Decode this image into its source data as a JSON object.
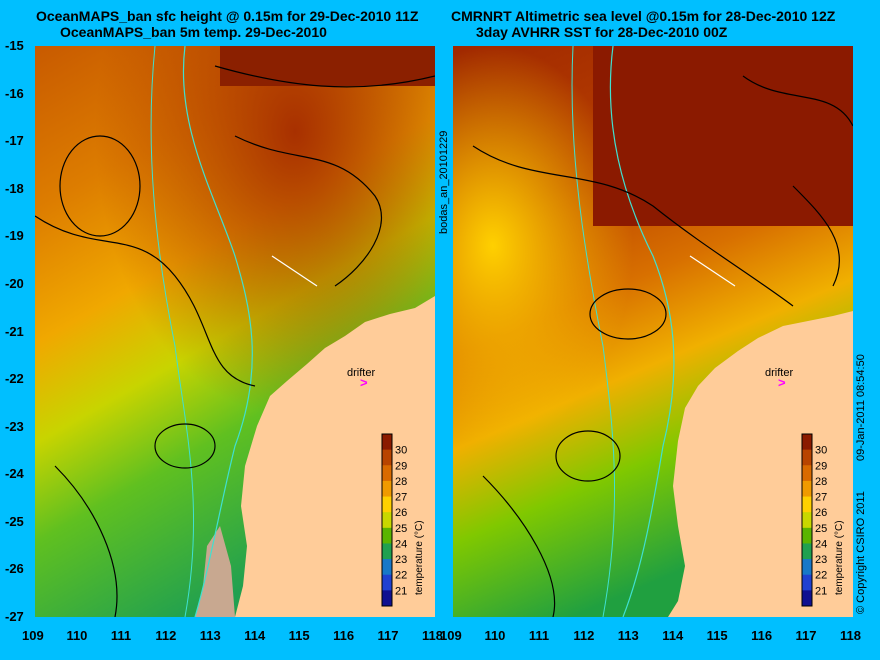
{
  "titles": {
    "left_line1": "OceanMAPS_ban sfc height @ 0.15m for 29-Dec-2010 11Z",
    "left_line2": "OceanMAPS_ban 5m temp. 29-Dec-2010",
    "right_line1": "CMRNRT Altimetric sea level  @0.15m  for 28-Dec-2010 12Z",
    "right_line2": "3day AVHRR SST for 28-Dec-2010 00Z"
  },
  "axes": {
    "lat_labels": [
      "-15",
      "-16",
      "-17",
      "-18",
      "-19",
      "-20",
      "-21",
      "-22",
      "-23",
      "-24",
      "-25",
      "-26",
      "-27"
    ],
    "left_lon_labels": [
      "109",
      "110",
      "111",
      "112",
      "113",
      "114",
      "115",
      "116",
      "117",
      "118"
    ],
    "right_lon_labels": [
      "109",
      "110",
      "111",
      "112",
      "113",
      "114",
      "115",
      "116",
      "117",
      "118"
    ]
  },
  "markers": {
    "drifter_label": "drifter",
    "drifter_glyph": ">"
  },
  "colorbar": {
    "ticks": [
      "30",
      "29",
      "28",
      "27",
      "26",
      "25",
      "24",
      "23",
      "22",
      "21"
    ],
    "label": "temperature (°C)",
    "colors": [
      "#8b1a00",
      "#b84400",
      "#d96a00",
      "#f09a00",
      "#ffd000",
      "#c8d800",
      "#5ab400",
      "#20a050",
      "#1878c8",
      "#2040d0",
      "#101090"
    ]
  },
  "side_text": {
    "file_id": "bodas_an_20101229",
    "date_stamp": "09-Jan-2011 08:54:50",
    "copyright": "© Copyright CSIRO 2011"
  },
  "colors": {
    "background": "#00bfff",
    "land": "#ffcc99",
    "coastline": "#40e0d0",
    "drifter": "#ff00ff"
  }
}
